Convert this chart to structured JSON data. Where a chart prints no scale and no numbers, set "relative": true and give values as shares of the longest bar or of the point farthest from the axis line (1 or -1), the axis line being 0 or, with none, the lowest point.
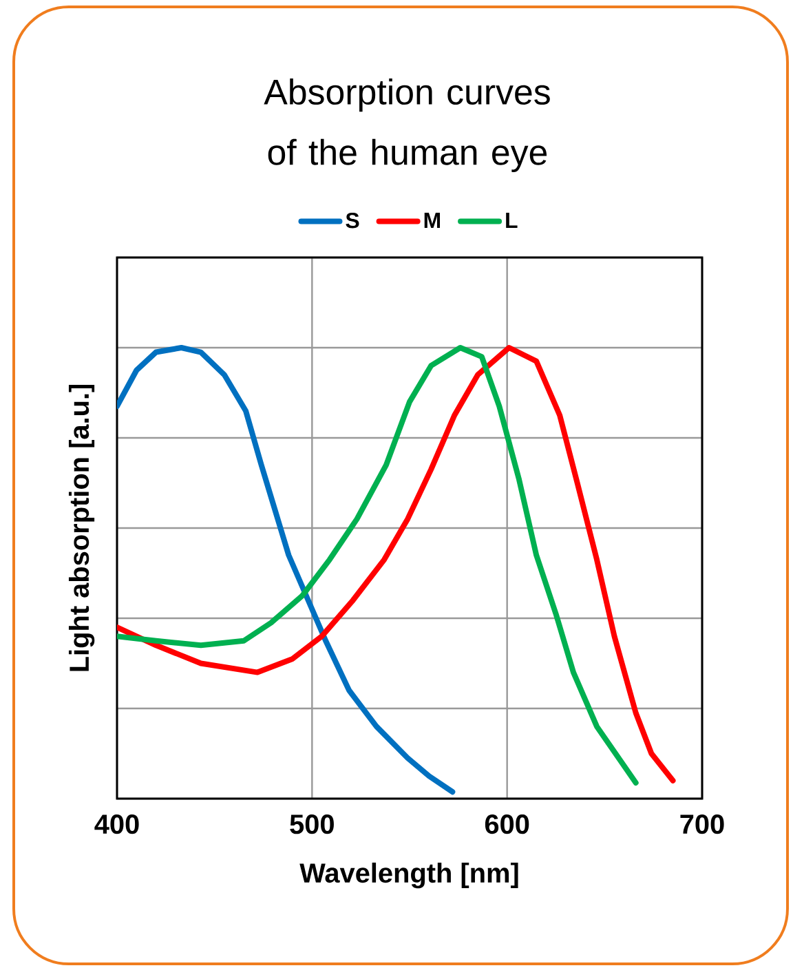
{
  "chart_data": {
    "type": "line",
    "title": "Absorption curves of the human eye",
    "xlabel": "Wavelength [nm]",
    "ylabel": "Light absorption [a.u.]",
    "xlim": [
      400,
      700
    ],
    "xticks": [
      400,
      500,
      600,
      700
    ],
    "relative": true,
    "grid": true,
    "legend": "top",
    "line_style": "solid",
    "marker": "none",
    "series": [
      {
        "name": "S",
        "color": "#0070c0",
        "x": [
          400,
          410,
          420,
          433,
          443,
          455,
          466,
          474,
          481,
          488,
          498,
          507,
          519,
          533,
          549,
          560,
          572
        ],
        "values": [
          0.87,
          0.95,
          0.99,
          1.0,
          0.99,
          0.94,
          0.86,
          0.74,
          0.64,
          0.54,
          0.44,
          0.35,
          0.24,
          0.16,
          0.09,
          0.05,
          0.015
        ]
      },
      {
        "name": "M",
        "color": "#ff0000",
        "x": [
          400,
          420,
          443,
          472,
          490,
          505,
          521,
          537,
          549,
          561,
          573,
          585,
          601,
          615,
          627,
          636,
          646,
          655,
          666,
          674,
          685
        ],
        "values": [
          0.38,
          0.34,
          0.3,
          0.28,
          0.31,
          0.36,
          0.44,
          0.53,
          0.62,
          0.73,
          0.85,
          0.94,
          1.0,
          0.97,
          0.85,
          0.7,
          0.53,
          0.36,
          0.19,
          0.1,
          0.04
        ]
      },
      {
        "name": "L",
        "color": "#00b050",
        "x": [
          400,
          420,
          443,
          465,
          479,
          495,
          509,
          523,
          538,
          550,
          561,
          576,
          587,
          596,
          606,
          615,
          625,
          634,
          646,
          666
        ],
        "values": [
          0.36,
          0.35,
          0.34,
          0.35,
          0.39,
          0.45,
          0.53,
          0.62,
          0.74,
          0.88,
          0.96,
          1.0,
          0.98,
          0.87,
          0.71,
          0.54,
          0.41,
          0.28,
          0.16,
          0.035
        ]
      }
    ]
  }
}
